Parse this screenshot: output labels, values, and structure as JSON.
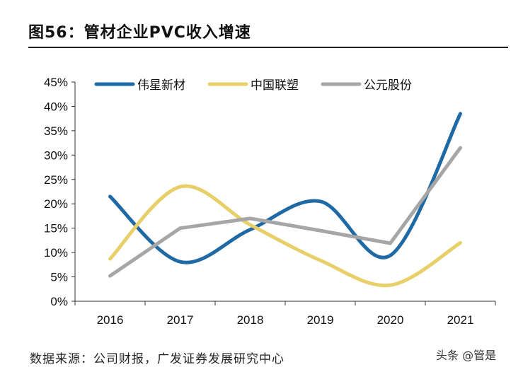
{
  "title": "图56：管材企业PVC收入增速",
  "source": "数据来源：公司财报，广发证券发展研究中心",
  "watermark": "头条 @管是",
  "chart_data": {
    "type": "line",
    "title": "管材企业PVC收入增速",
    "xlabel": "",
    "ylabel": "",
    "categories": [
      "2016",
      "2017",
      "2018",
      "2019",
      "2020",
      "2021"
    ],
    "ylim": [
      0,
      45
    ],
    "yticks": [
      "0%",
      "5%",
      "10%",
      "15%",
      "20%",
      "25%",
      "30%",
      "35%",
      "40%",
      "45%"
    ],
    "legend_position": "top",
    "grid": false,
    "series": [
      {
        "name": "伟星新材",
        "color": "#1f6aa5",
        "smooth": true,
        "values": [
          21.5,
          8.1,
          14.7,
          20.5,
          9.4,
          38.5
        ]
      },
      {
        "name": "中国联塑",
        "color": "#e8cf6a",
        "smooth": true,
        "values": [
          8.7,
          23.5,
          15.7,
          8.4,
          3.3,
          12.0
        ]
      },
      {
        "name": "公元股份",
        "color": "#a6a6a6",
        "smooth": false,
        "values": [
          5.2,
          15.0,
          17.0,
          14.5,
          11.9,
          31.5
        ]
      }
    ]
  }
}
